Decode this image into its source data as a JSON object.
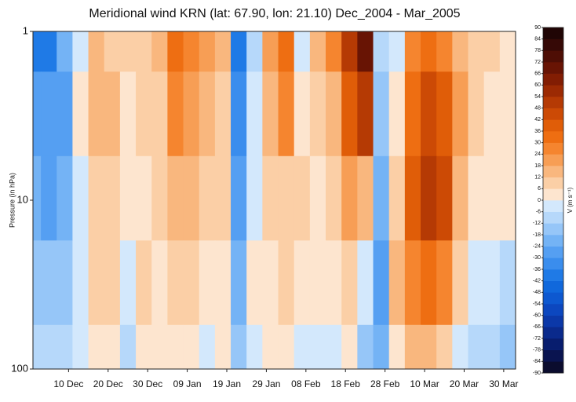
{
  "chart_data": {
    "type": "heatmap",
    "title": "Meridional wind KRN (lat: 67.90, lon: 21.10) Dec_2004 - Mar_2005",
    "ylabel": "Pressure (in hPa)",
    "colorbar_label": "V (m s⁻¹)",
    "x": [
      0,
      4,
      8,
      12,
      16,
      20,
      24,
      28,
      32,
      36,
      40,
      44,
      48,
      52,
      56,
      60,
      64,
      68,
      72,
      76,
      80,
      84,
      88,
      92,
      96,
      100,
      104,
      108,
      112,
      116,
      120
    ],
    "y": [
      1,
      3,
      10,
      30,
      100
    ],
    "z": [
      [
        -40,
        -40,
        -20,
        -5,
        15,
        10,
        6,
        10,
        12,
        30,
        24,
        18,
        12,
        -40,
        -12,
        18,
        30,
        -6,
        12,
        24,
        48,
        66,
        -12,
        -6,
        24,
        30,
        24,
        12,
        6,
        6,
        0
      ],
      [
        -30,
        -30,
        -25,
        0,
        12,
        12,
        3,
        6,
        10,
        24,
        18,
        12,
        10,
        -36,
        -6,
        12,
        24,
        0,
        6,
        12,
        40,
        50,
        -18,
        0,
        30,
        42,
        36,
        18,
        6,
        3,
        3
      ],
      [
        -20,
        -25,
        -20,
        -3,
        10,
        10,
        0,
        3,
        6,
        12,
        12,
        6,
        6,
        -30,
        -3,
        6,
        10,
        6,
        3,
        6,
        18,
        12,
        -24,
        6,
        36,
        48,
        42,
        12,
        0,
        0,
        0
      ],
      [
        -15,
        -15,
        -15,
        -5,
        6,
        6,
        -6,
        6,
        3,
        6,
        6,
        0,
        3,
        -24,
        0,
        3,
        6,
        0,
        0,
        0,
        6,
        -6,
        -30,
        12,
        24,
        30,
        24,
        6,
        -6,
        -6,
        -12
      ],
      [
        -10,
        -10,
        -10,
        -5,
        0,
        3,
        -10,
        3,
        0,
        3,
        0,
        -6,
        0,
        -18,
        -6,
        0,
        0,
        -6,
        -6,
        -3,
        0,
        -18,
        -24,
        0,
        12,
        12,
        6,
        -6,
        -12,
        -12,
        -18
      ]
    ],
    "xlim": [
      0,
      122
    ],
    "xticks": [
      {
        "value": 9,
        "label": "10 Dec"
      },
      {
        "value": 19,
        "label": "20 Dec"
      },
      {
        "value": 29,
        "label": "30 Dec"
      },
      {
        "value": 39,
        "label": "09 Jan"
      },
      {
        "value": 49,
        "label": "19 Jan"
      },
      {
        "value": 59,
        "label": "29 Jan"
      },
      {
        "value": 69,
        "label": "08 Feb"
      },
      {
        "value": 79,
        "label": "18 Feb"
      },
      {
        "value": 89,
        "label": "28 Feb"
      },
      {
        "value": 99,
        "label": "10 Mar"
      },
      {
        "value": 109,
        "label": "20 Mar"
      },
      {
        "value": 119,
        "label": "30 Mar"
      }
    ],
    "ylim": [
      100,
      1
    ],
    "yticks": [
      1,
      10,
      100
    ],
    "log_y": true,
    "zticks": [
      -90,
      -84,
      -78,
      -72,
      -66,
      -60,
      -54,
      -48,
      -42,
      -36,
      -30,
      -24,
      -18,
      -12,
      -6,
      0,
      6,
      12,
      18,
      24,
      30,
      36,
      42,
      48,
      54,
      60,
      66,
      72,
      78,
      84,
      90
    ],
    "colors": [
      "#0b0c2e",
      "#0a1450",
      "#081d6e",
      "#0a2a8c",
      "#0b38a8",
      "#0c47bf",
      "#0d58d0",
      "#1068dc",
      "#1f7ae6",
      "#3a8ded",
      "#559ff2",
      "#74b3f5",
      "#96c6f8",
      "#b6d8fa",
      "#d3e8fc",
      "#fde5cf",
      "#fbcfa6",
      "#f9b77e",
      "#f79e55",
      "#f5852f",
      "#ee6e12",
      "#e05d08",
      "#cc4a05",
      "#b53a04",
      "#9c2a03",
      "#821d03",
      "#681404",
      "#4e0e05",
      "#360906",
      "#200505"
    ]
  }
}
